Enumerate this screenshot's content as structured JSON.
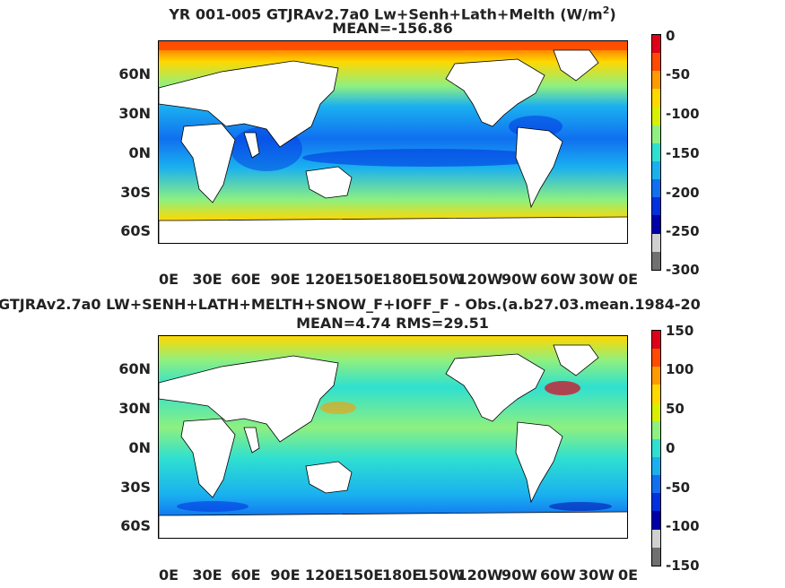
{
  "panel1": {
    "title_line1": "YR 001-005 GTJRAv2.7a0 Lw+Senh+Lath+Melth (W/m",
    "title_sup": "2",
    "title_close": ")",
    "title_line2": "MEAN=-156.86",
    "lat_labels": [
      "60N",
      "30N",
      "0N",
      "30S",
      "60S"
    ],
    "lon_labels": [
      "0E",
      "30E",
      "60E",
      "90E",
      "120E",
      "150E",
      "180E",
      "150W",
      "120W",
      "90W",
      "60W",
      "30W",
      "0E"
    ],
    "colorbar_ticks": [
      "0",
      "-50",
      "-100",
      "-150",
      "-200",
      "-250",
      "-300"
    ],
    "colorbar_colors": [
      "#e0001a",
      "#ff4a00",
      "#ff9a00",
      "#ffd800",
      "#d8f000",
      "#8ef080",
      "#2fe0d0",
      "#1ab0f0",
      "#1070f0",
      "#0030e0",
      "#0000a8",
      "#d0d0d0",
      "#707070"
    ]
  },
  "panel2": {
    "title_line1": "GTJRAv2.7a0 LW+SENH+LATH+MELTH+SNOW_F+IOFF_F - Obs.(a.b27.03.mean.1984-20",
    "title_line2": "MEAN=4.74 RMS=29.51",
    "lat_labels": [
      "60N",
      "30N",
      "0N",
      "30S",
      "60S"
    ],
    "lon_labels": [
      "0E",
      "30E",
      "60E",
      "90E",
      "120E",
      "150E",
      "180E",
      "150W",
      "120W",
      "90W",
      "60W",
      "30W",
      "0E"
    ],
    "colorbar_ticks": [
      "150",
      "100",
      "50",
      "0",
      "-50",
      "-100",
      "-150"
    ],
    "colorbar_colors": [
      "#e0001a",
      "#ff4a00",
      "#ff9a00",
      "#ffd800",
      "#d8f000",
      "#8ef080",
      "#2fe0d0",
      "#1ab0f0",
      "#1070f0",
      "#0030e0",
      "#0000a8",
      "#d0d0d0",
      "#707070"
    ]
  }
}
